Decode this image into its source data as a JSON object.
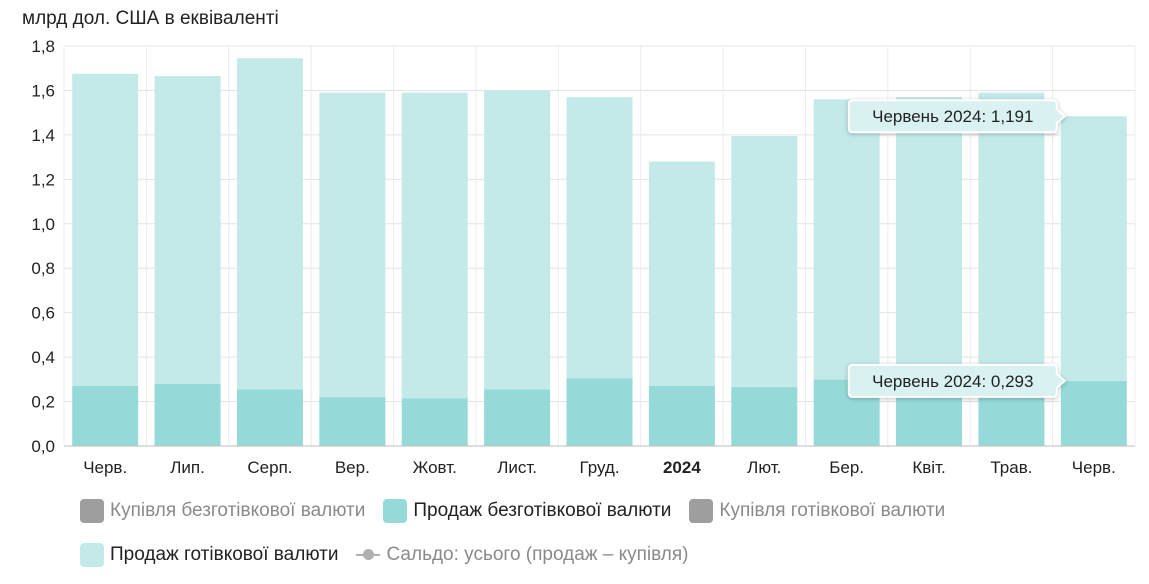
{
  "chart_data": {
    "type": "bar",
    "stacked": true,
    "ylabel": "млрд дол. США в еквіваленті",
    "ylim": [
      0,
      1.8
    ],
    "yticks": [
      "0,0",
      "0,2",
      "0,4",
      "0,6",
      "0,8",
      "1,0",
      "1,2",
      "1,4",
      "1,6",
      "1,8"
    ],
    "ytick_values": [
      0,
      0.2,
      0.4,
      0.6,
      0.8,
      1.0,
      1.2,
      1.4,
      1.6,
      1.8
    ],
    "grid": true,
    "categories": [
      "Черв.",
      "Лип.",
      "Серп.",
      "Вер.",
      "Жовт.",
      "Лист.",
      "Груд.",
      "2024",
      "Лют.",
      "Бер.",
      "Квіт.",
      "Трав.",
      "Черв."
    ],
    "bold_categories": [
      "2024"
    ],
    "series": [
      {
        "name": "Продаж безготівкової валюти",
        "color": "#95dad8",
        "values": [
          0.27,
          0.28,
          0.255,
          0.22,
          0.215,
          0.255,
          0.305,
          0.27,
          0.265,
          0.3,
          0.3,
          0.3,
          0.293
        ]
      },
      {
        "name": "Продаж готівкової валюти",
        "color": "#c3e9e9",
        "values": [
          1.405,
          1.385,
          1.49,
          1.37,
          1.375,
          1.345,
          1.265,
          1.01,
          1.13,
          1.26,
          1.27,
          1.29,
          1.191
        ]
      }
    ],
    "legend_position": "bottom",
    "legend": [
      {
        "name": "Купівля безготівкової валюти",
        "color": "#9e9e9e",
        "hidden": true,
        "marker": "square"
      },
      {
        "name": "Продаж безготівкової валюти",
        "color": "#95dad8",
        "hidden": false,
        "marker": "square"
      },
      {
        "name": "Купівля готівкової валюти",
        "color": "#9e9e9e",
        "hidden": true,
        "marker": "square"
      },
      {
        "name": "Продаж готівкової валюти",
        "color": "#c3e9e9",
        "hidden": false,
        "marker": "square"
      },
      {
        "name": "Сальдо: усього (продаж – купівля)",
        "color": "#b0b0b0",
        "hidden": true,
        "marker": "line"
      }
    ],
    "tooltips": [
      {
        "text": "Червень 2024: 1,191",
        "category_index": 12,
        "series_index": 1
      },
      {
        "text": "Червень 2024: 0,293",
        "category_index": 12,
        "series_index": 0
      }
    ]
  }
}
